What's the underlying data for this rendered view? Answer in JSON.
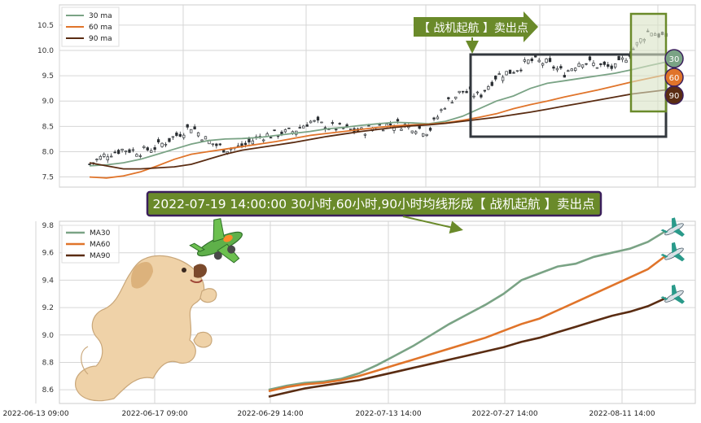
{
  "colors": {
    "ma30": "#7aa385",
    "ma60": "#e0742a",
    "ma90": "#5a2c12",
    "box": "#33383e",
    "banner_green": "#6a8a2a",
    "grid": "#d6d6d6",
    "candle": "#2b2f33",
    "highlight_fill": "#d8e3c4"
  },
  "top_banner": {
    "text": "【 战机起航 】卖出点"
  },
  "signal_banner": {
    "text": "2022-07-19 14:00:00 30小时,60小时,90小时均线形成【 战机起航 】卖出点"
  },
  "icons": [
    "dog-icon",
    "airplane-icon"
  ],
  "chart_data": [
    {
      "type": "line",
      "panel": "top",
      "subtype": "candlestick with moving averages",
      "ylim": [
        7.3,
        10.9
      ],
      "yticks": [
        7.5,
        8.0,
        8.5,
        9.0,
        9.5,
        10.0,
        10.5
      ],
      "ytick_labels": [
        "7.5",
        "8.0",
        "8.5",
        "9.0",
        "9.5",
        "10.0",
        "10.5"
      ],
      "legend": [
        "30 ma",
        "60 ma",
        "90 ma"
      ],
      "legend_position": "top-left",
      "end_badges": [
        {
          "label": "30",
          "value": 9.77
        },
        {
          "label": "60",
          "value": 9.52
        },
        {
          "label": "90",
          "value": 9.22
        }
      ],
      "series": [
        {
          "name": "30 ma",
          "values": [
            7.72,
            7.74,
            7.78,
            7.85,
            7.95,
            8.05,
            8.15,
            8.22,
            8.25,
            8.26,
            8.28,
            8.32,
            8.36,
            8.4,
            8.45,
            8.48,
            8.52,
            8.55,
            8.58,
            8.57,
            8.55,
            8.6,
            8.7,
            8.85,
            9.0,
            9.1,
            9.25,
            9.35,
            9.4,
            9.45,
            9.5,
            9.55,
            9.62,
            9.7,
            9.77
          ]
        },
        {
          "name": "60 ma",
          "values": [
            7.5,
            7.48,
            7.52,
            7.6,
            7.72,
            7.85,
            7.95,
            8.0,
            8.05,
            8.1,
            8.15,
            8.2,
            8.26,
            8.32,
            8.36,
            8.4,
            8.44,
            8.48,
            8.51,
            8.53,
            8.54,
            8.57,
            8.62,
            8.68,
            8.75,
            8.85,
            8.93,
            9.0,
            9.08,
            9.15,
            9.22,
            9.3,
            9.38,
            9.45,
            9.52
          ]
        },
        {
          "name": "90 ma",
          "values": [
            7.78,
            7.72,
            7.66,
            7.66,
            7.68,
            7.7,
            7.75,
            7.85,
            7.95,
            8.03,
            8.08,
            8.13,
            8.18,
            8.24,
            8.3,
            8.35,
            8.4,
            8.44,
            8.48,
            8.51,
            8.53,
            8.56,
            8.6,
            8.64,
            8.68,
            8.73,
            8.78,
            8.84,
            8.9,
            8.96,
            9.02,
            9.08,
            9.14,
            9.18,
            9.22
          ]
        },
        {
          "name": "close",
          "values": [
            7.75,
            7.95,
            8.05,
            8.0,
            8.1,
            8.3,
            8.5,
            8.2,
            8.05,
            8.1,
            8.3,
            8.35,
            8.4,
            8.6,
            8.5,
            8.45,
            8.4,
            8.5,
            8.55,
            8.5,
            8.4,
            8.95,
            9.2,
            9.1,
            9.5,
            9.6,
            9.8,
            9.75,
            9.55,
            9.8,
            9.7,
            9.65,
            10.0,
            10.4,
            10.25
          ]
        }
      ]
    },
    {
      "type": "line",
      "panel": "bottom",
      "ylim": [
        8.5,
        9.83
      ],
      "yticks": [
        8.6,
        8.8,
        9.0,
        9.2,
        9.4,
        9.6,
        9.8
      ],
      "ytick_labels": [
        "8.6",
        "8.8",
        "9.0",
        "9.2",
        "9.4",
        "9.6",
        "9.8"
      ],
      "x_tick_labels": [
        "2022-06-13 09:00",
        "2022-06-17 09:00",
        "2022-06-29 14:00",
        "2022-07-13 14:00",
        "2022-07-27 14:00",
        "2022-08-11 14:00"
      ],
      "legend": [
        "MA30",
        "MA60",
        "MA90"
      ],
      "legend_position": "top-left",
      "series": [
        {
          "name": "MA30",
          "values": [
            8.6,
            8.63,
            8.65,
            8.66,
            8.68,
            8.72,
            8.78,
            8.85,
            8.92,
            9.0,
            9.08,
            9.15,
            9.22,
            9.3,
            9.4,
            9.45,
            9.5,
            9.52,
            9.57,
            9.6,
            9.63,
            9.68,
            9.76
          ]
        },
        {
          "name": "MA60",
          "values": [
            8.59,
            8.62,
            8.64,
            8.65,
            8.67,
            8.7,
            8.74,
            8.78,
            8.82,
            8.86,
            8.9,
            8.94,
            8.98,
            9.03,
            9.08,
            9.12,
            9.18,
            9.24,
            9.3,
            9.36,
            9.42,
            9.48,
            9.58
          ]
        },
        {
          "name": "MA90",
          "values": [
            8.55,
            8.58,
            8.61,
            8.63,
            8.65,
            8.67,
            8.7,
            8.73,
            8.76,
            8.79,
            8.82,
            8.85,
            8.88,
            8.91,
            8.95,
            8.98,
            9.02,
            9.06,
            9.1,
            9.14,
            9.17,
            9.21,
            9.27
          ]
        }
      ]
    }
  ]
}
